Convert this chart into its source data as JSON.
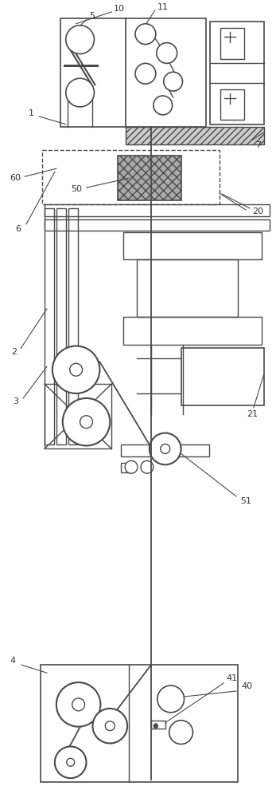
{
  "bg_color": "#ffffff",
  "line_color": "#4a4a4a",
  "label_color": "#333333",
  "lw": 1.0
}
